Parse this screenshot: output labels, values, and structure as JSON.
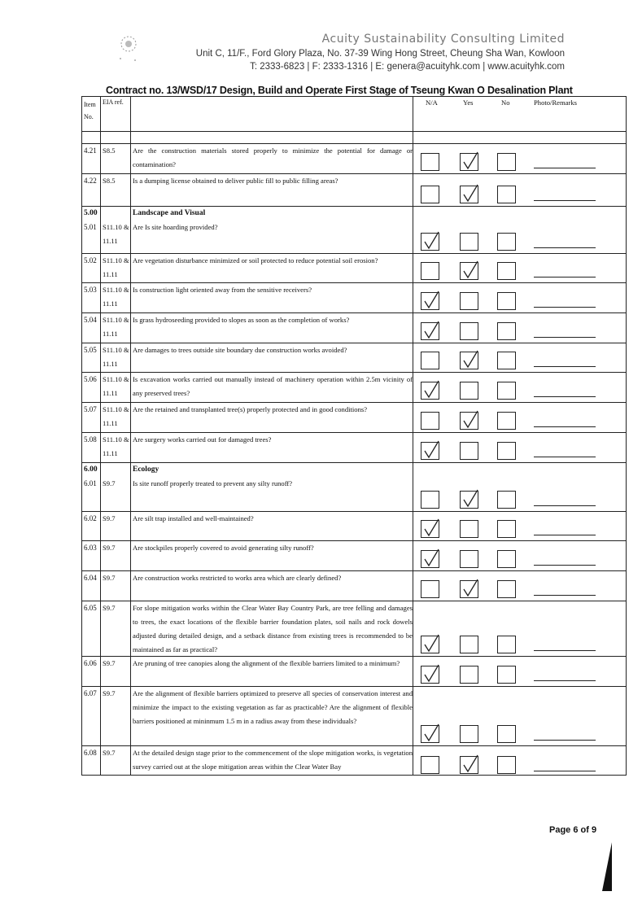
{
  "letterhead": {
    "company": "Acuity Sustainability Consulting Limited",
    "address": "Unit C, 11/F., Ford Glory Plaza, No. 37-39 Wing Hong Street, Cheung Sha Wan, Kowloon",
    "contact": "T: 2333-6823 | F: 2333-1316 | E: genera@acuityhk.com | www.acuityhk.com"
  },
  "title": "Contract no. 13/WSD/17 Design, Build and Operate First Stage of Tseung Kwan O Desalination Plant",
  "headers": {
    "item": "Item No.",
    "eia": "EIA ref.",
    "na": "N/A",
    "yes": "Yes",
    "no": "No",
    "remarks": "Photo/Remarks"
  },
  "rows": [
    {
      "item": "4.21",
      "eia": "S8.5",
      "desc": "Are the construction materials stored properly to minimize the potential for damage or contamination?",
      "answer": "yes"
    },
    {
      "item": "4.22",
      "eia": "S8.5",
      "desc": "Is a dumping license obtained to deliver public fill to public filling areas?",
      "answer": "yes"
    },
    {
      "section_no": "5.00",
      "section": "Landscape and Visual",
      "item": "5.01",
      "eia": "S11.10 & 11.11",
      "desc": "Are Is site hoarding provided?",
      "answer": "na"
    },
    {
      "item": "5.02",
      "eia": "S11.10 & 11.11",
      "desc": "Are vegetation disturbance minimized or soil protected to reduce potential soil erosion?",
      "answer": "yes"
    },
    {
      "item": "5.03",
      "eia": "S11.10 & 11.11",
      "desc": "Is construction light oriented away from the sensitive receivers?",
      "answer": "na"
    },
    {
      "item": "5.04",
      "eia": "S11.10 & 11.11",
      "desc": "Is grass hydroseeding provided to slopes as soon as the completion of works?",
      "answer": "na"
    },
    {
      "item": "5.05",
      "eia": "S11.10 & 11.11",
      "desc": "Are damages to trees outside site boundary due construction works avoided?",
      "answer": "yes"
    },
    {
      "item": "5.06",
      "eia": "S11.10 & 11.11",
      "desc": "Is excavation works carried out manually instead of machinery operation within 2.5m vicinity of any preserved trees?",
      "answer": "na"
    },
    {
      "item": "5.07",
      "eia": "S11.10 & 11.11",
      "desc": "Are the retained and transplanted tree(s) properly protected and in good conditions?",
      "answer": "yes"
    },
    {
      "item": "5.08",
      "eia": "S11.10 & 11.11",
      "desc": "Are surgery works carried out for damaged trees?",
      "answer": "na"
    },
    {
      "section_no": "6.00",
      "section": "Ecology",
      "item": "6.01",
      "eia": "S9.7",
      "desc": "Is site runoff properly treated to prevent any silty runoff?",
      "answer": "yes"
    },
    {
      "item": "6.02",
      "eia": "S9.7",
      "desc": "Are silt trap installed and well-maintained?",
      "answer": "na"
    },
    {
      "item": "6.03",
      "eia": "S9.7",
      "desc": "Are stockpiles properly covered to avoid generating silty runoff?",
      "answer": "na"
    },
    {
      "item": "6.04",
      "eia": "S9.7",
      "desc": "Are construction works restricted to works area which are clearly defined?",
      "answer": "yes"
    },
    {
      "item": "6.05",
      "eia": "S9.7",
      "desc": "For slope mitigation works within the Clear Water Bay Country Park, are tree felling and damages to trees, the exact locations of the flexible barrier foundation plates, soil nails and rock dowels adjusted during detailed design, and a setback distance from existing trees is recommended to be maintained as far as practical?",
      "answer": "na"
    },
    {
      "item": "6.06",
      "eia": "S9.7",
      "desc": "Are pruning of tree canopies along the alignment of the flexible barriers limited to a minimum?",
      "answer": "na"
    },
    {
      "item": "6.07",
      "eia": "S9.7",
      "desc": "Are the alignment of flexible barriers optimized to preserve all species of conservation interest and minimize the impact to the existing vegetation as far as practicable? Are the alignment of flexible barriers positioned at mininmum 1.5 m in a radius away from these individuals?",
      "answer": "na"
    },
    {
      "item": "6.08",
      "eia": "S9.7",
      "desc": "At the detailed design stage prior to the commencement of the slope mitigation works, is vegetation survey carried out at the slope mitigation areas within the Clear Water Bay",
      "answer": "yes"
    }
  ],
  "footer": {
    "page": "Page 6 of 9"
  }
}
